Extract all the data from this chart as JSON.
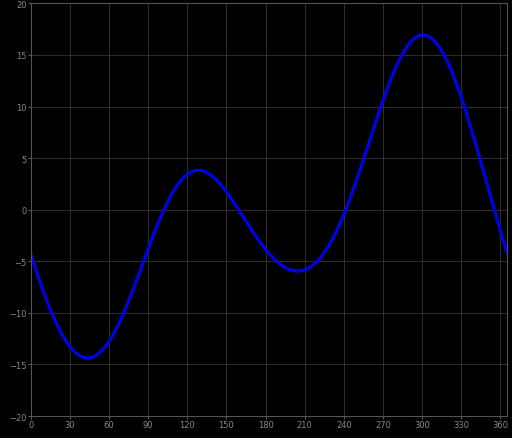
{
  "background_color": "#000000",
  "plot_bg_color": "#000000",
  "grid_color": "#404040",
  "line_color": "#0000ee",
  "line_width": 2.2,
  "xlim": [
    0,
    365
  ],
  "ylim": [
    -20,
    20
  ],
  "ytick_values": [
    -20,
    -15,
    -10,
    -5,
    0,
    5,
    10,
    15,
    20
  ],
  "xtick_values": [
    0,
    30,
    60,
    90,
    120,
    150,
    180,
    210,
    240,
    270,
    300,
    330,
    360
  ],
  "tick_label_color": "#888888",
  "tick_label_size": 6,
  "spine_color": "#555555",
  "figsize": [
    5.12,
    4.39
  ],
  "dpi": 100
}
